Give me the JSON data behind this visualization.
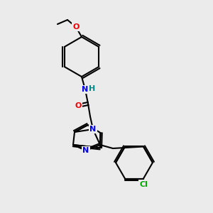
{
  "background_color": "#ebebeb",
  "bond_color": "#000000",
  "atom_colors": {
    "N": "#0000ee",
    "O": "#ee0000",
    "Cl": "#00aa00",
    "H": "#008888"
  },
  "lw": 1.5,
  "font_size": 7.5
}
